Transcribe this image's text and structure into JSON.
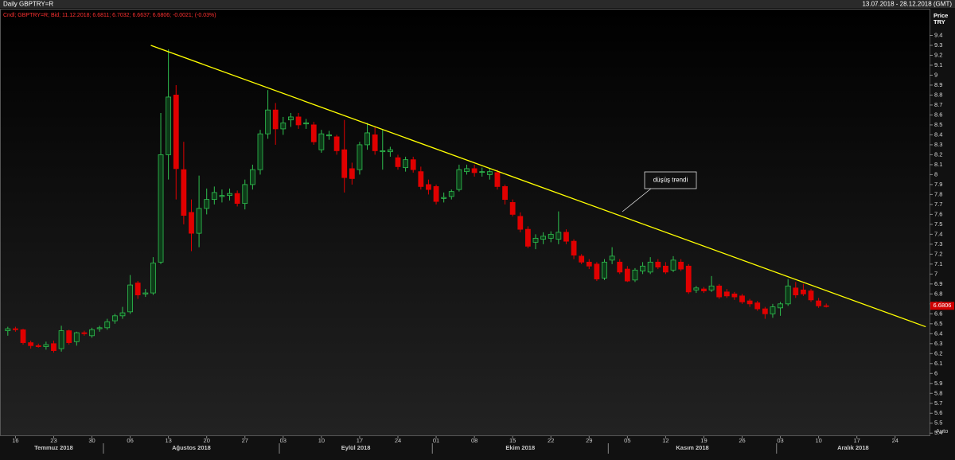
{
  "header": {
    "title": "Daily GBPTRY=R",
    "range": "13.07.2018 - 28.12.2018 (GMT)"
  },
  "chart_data": {
    "type": "candlestick",
    "info": "Cndl; GBPTRY=R; Bid; 11.12.2018; 6.6811; 6.7032; 6.6637; 6.6806; -0.0021; (-0.03%)",
    "y_label": "Price",
    "y_unit": "TRY",
    "annotation": "düşüş trendi",
    "up_color": "#2fbf4f",
    "down_color": "#e00000",
    "trendline": {
      "color": "#ffff00",
      "x": [
        18.7,
        120
      ],
      "values": [
        9.3,
        6.47
      ]
    },
    "categories": [
      null,
      "16",
      null,
      null,
      null,
      null,
      "23",
      null,
      null,
      null,
      null,
      "30",
      null,
      null,
      null,
      null,
      "06",
      null,
      null,
      null,
      null,
      "13",
      null,
      null,
      null,
      null,
      "20",
      null,
      null,
      null,
      null,
      "27",
      null,
      null,
      null,
      null,
      "03",
      null,
      null,
      null,
      null,
      "10",
      null,
      null,
      null,
      null,
      "17",
      null,
      null,
      null,
      null,
      "24",
      null,
      null,
      null,
      null,
      "01",
      null,
      null,
      null,
      null,
      "08",
      null,
      null,
      null,
      null,
      "15",
      null,
      null,
      null,
      null,
      "22",
      null,
      null,
      null,
      null,
      "29",
      null,
      null,
      null,
      null,
      "05",
      null,
      null,
      null,
      null,
      "12",
      null,
      null,
      null,
      null,
      "19",
      null,
      null,
      null,
      null,
      "26",
      null,
      null,
      null,
      null,
      "03",
      null,
      null,
      null,
      null,
      "10",
      null,
      null,
      null,
      null,
      "17",
      null,
      null,
      null,
      null,
      "24",
      null,
      null,
      null,
      null
    ],
    "month_groups": [
      {
        "label": "Temmuz 2018",
        "count": 13
      },
      {
        "label": "Ağustos 2018",
        "count": 23
      },
      {
        "label": "Eylül 2018",
        "count": 20
      },
      {
        "label": "Ekim 2018",
        "count": 23
      },
      {
        "label": "Kasım 2018",
        "count": 22
      },
      {
        "label": "Aralık 2018",
        "count": 20
      }
    ],
    "open": [
      6.43,
      6.45,
      6.44,
      6.31,
      6.28,
      6.27,
      6.3,
      6.25,
      6.43,
      6.32,
      6.41,
      6.38,
      6.45,
      6.46,
      6.53,
      6.58,
      6.62,
      6.91,
      6.8,
      6.81,
      7.12,
      8.2,
      8.8,
      8.05,
      7.62,
      7.41,
      7.66,
      7.75,
      7.78,
      7.79,
      7.81,
      7.71,
      7.9,
      8.05,
      8.41,
      8.65,
      8.46,
      8.55,
      8.58,
      8.51,
      8.5,
      8.25,
      8.39,
      8.38,
      8.25,
      8.06,
      8.05,
      8.3,
      8.4,
      8.23,
      8.23,
      8.17,
      8.07,
      8.15,
      8.03,
      7.9,
      7.88,
      7.76,
      7.78,
      7.85,
      8.03,
      8.06,
      8.03,
      8.0,
      8.02,
      7.88,
      7.72,
      7.58,
      7.45,
      7.32,
      7.35,
      7.36,
      7.35,
      7.42,
      7.33,
      7.18,
      7.12,
      7.1,
      6.96,
      7.14,
      7.12,
      7.05,
      6.94,
      7.03,
      7.02,
      7.12,
      7.08,
      7.04,
      7.12,
      7.08,
      6.84,
      6.85,
      6.84,
      6.88,
      6.82,
      6.8,
      6.78,
      6.73,
      6.71,
      6.65,
      6.6,
      6.66,
      6.7,
      6.86,
      6.84,
      6.83,
      6.73,
      6.6811,
      null,
      null,
      null,
      null,
      null,
      null,
      null,
      null,
      null,
      null,
      null,
      null,
      null
    ],
    "high": [
      6.47,
      6.47,
      6.45,
      6.33,
      6.3,
      6.32,
      6.33,
      6.48,
      6.44,
      6.42,
      6.43,
      6.46,
      6.48,
      6.55,
      6.6,
      6.67,
      6.99,
      6.93,
      6.85,
      7.17,
      8.62,
      9.26,
      8.9,
      8.33,
      7.75,
      7.99,
      7.86,
      7.88,
      7.85,
      7.86,
      7.84,
      7.95,
      8.1,
      8.45,
      8.85,
      8.72,
      8.58,
      8.62,
      8.62,
      8.56,
      8.53,
      8.45,
      8.44,
      8.4,
      8.55,
      8.12,
      8.33,
      8.52,
      8.48,
      8.45,
      8.28,
      8.2,
      8.18,
      8.18,
      8.08,
      7.95,
      7.9,
      7.82,
      7.85,
      8.1,
      8.1,
      8.1,
      8.07,
      8.06,
      8.05,
      7.9,
      7.75,
      7.62,
      7.48,
      7.4,
      7.42,
      7.43,
      7.63,
      7.45,
      7.35,
      7.2,
      7.15,
      7.12,
      7.15,
      7.27,
      7.15,
      7.08,
      7.06,
      7.12,
      7.17,
      7.15,
      7.12,
      7.18,
      7.15,
      7.1,
      6.88,
      6.87,
      6.98,
      6.9,
      6.85,
      6.82,
      6.8,
      6.75,
      6.73,
      6.67,
      6.7,
      6.72,
      6.95,
      6.92,
      6.9,
      6.85,
      6.76,
      6.7032,
      null,
      null,
      null,
      null,
      null,
      null,
      null,
      null,
      null,
      null,
      null,
      null,
      null
    ],
    "low": [
      6.38,
      6.42,
      6.29,
      6.25,
      6.26,
      6.24,
      6.21,
      6.22,
      6.29,
      6.28,
      6.38,
      6.36,
      6.42,
      6.44,
      6.5,
      6.55,
      6.6,
      6.75,
      6.77,
      6.79,
      7.1,
      7.95,
      7.75,
      7.5,
      7.23,
      7.27,
      7.6,
      7.7,
      7.72,
      7.74,
      7.68,
      7.65,
      7.85,
      8.0,
      8.36,
      8.3,
      8.4,
      8.48,
      8.46,
      8.46,
      8.3,
      8.22,
      8.35,
      8.2,
      7.82,
      7.9,
      8.0,
      8.25,
      8.2,
      8.05,
      8.18,
      8.05,
      8.03,
      8.02,
      7.85,
      7.8,
      7.7,
      7.72,
      7.75,
      7.83,
      8.0,
      7.98,
      7.98,
      7.95,
      7.85,
      7.7,
      7.58,
      7.42,
      7.26,
      7.25,
      7.3,
      7.32,
      7.3,
      7.3,
      7.15,
      7.1,
      7.05,
      6.93,
      6.94,
      7.1,
      7.0,
      6.92,
      6.92,
      7.0,
      7.0,
      7.05,
      7.0,
      7.02,
      7.03,
      6.8,
      6.81,
      6.81,
      6.82,
      6.75,
      6.76,
      6.74,
      6.7,
      6.67,
      6.63,
      6.55,
      6.56,
      6.58,
      6.68,
      6.76,
      6.78,
      6.72,
      6.66,
      6.6637,
      null,
      null,
      null,
      null,
      null,
      null,
      null,
      null,
      null,
      null,
      null,
      null,
      null
    ],
    "close": [
      6.45,
      6.44,
      6.31,
      6.28,
      6.27,
      6.29,
      6.23,
      6.43,
      6.31,
      6.41,
      6.4,
      6.44,
      6.46,
      6.52,
      6.58,
      6.61,
      6.89,
      6.79,
      6.81,
      7.11,
      8.2,
      8.78,
      8.06,
      7.59,
      7.41,
      7.66,
      7.75,
      7.82,
      7.79,
      7.81,
      7.71,
      7.9,
      8.05,
      8.41,
      8.65,
      8.46,
      8.52,
      8.58,
      8.5,
      8.52,
      8.33,
      8.41,
      8.4,
      8.24,
      7.97,
      7.96,
      8.3,
      8.42,
      8.24,
      8.24,
      8.25,
      8.08,
      8.15,
      8.05,
      7.88,
      7.85,
      7.73,
      7.77,
      7.83,
      8.05,
      8.06,
      8.02,
      8.03,
      8.03,
      7.88,
      7.75,
      7.6,
      7.45,
      7.28,
      7.36,
      7.38,
      7.4,
      7.42,
      7.33,
      7.19,
      7.12,
      7.08,
      6.95,
      7.12,
      7.18,
      7.02,
      6.93,
      7.04,
      7.08,
      7.12,
      7.07,
      7.02,
      7.14,
      7.05,
      6.82,
      6.86,
      6.83,
      6.88,
      6.77,
      6.78,
      6.77,
      6.72,
      6.7,
      6.65,
      6.6,
      6.67,
      6.7,
      6.88,
      6.79,
      6.8,
      6.74,
      6.68,
      6.6806,
      null,
      null,
      null,
      null,
      null,
      null,
      null,
      null,
      null,
      null,
      null,
      null,
      null
    ],
    "ylim": [
      5.37,
      9.66
    ],
    "yticks": [
      5.4,
      5.5,
      5.6,
      5.7,
      5.8,
      5.9,
      6,
      6.1,
      6.2,
      6.3,
      6.4,
      6.5,
      6.6,
      6.7,
      6.8,
      6.9,
      7,
      7.1,
      7.2,
      7.3,
      7.4,
      7.5,
      7.6,
      7.7,
      7.8,
      7.9,
      8,
      8.1,
      8.2,
      8.3,
      8.4,
      8.5,
      8.6,
      8.7,
      8.8,
      8.9,
      9,
      9.1,
      9.2,
      9.3,
      9.4
    ],
    "auto_label": "Auto"
  }
}
